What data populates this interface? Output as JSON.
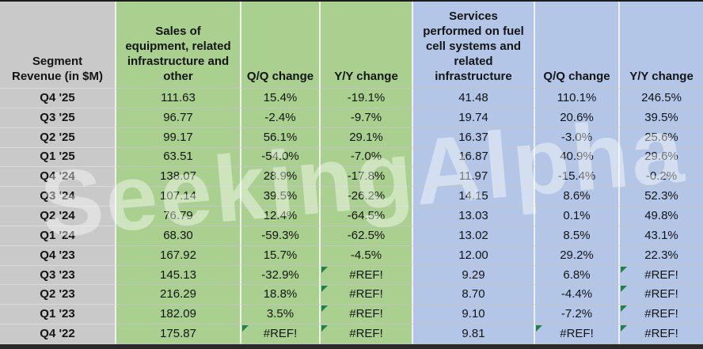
{
  "watermark": "SeekingAlpha",
  "colors": {
    "gray_fill": "#c9c9c9",
    "green_fill": "#a9d08e",
    "blue_fill": "#b4c6e7",
    "error_flag_green": "#1d8348",
    "top_bar": "#1c1c1c",
    "bottom_bar": "#2a2a2a"
  },
  "table": {
    "columns": [
      {
        "label": "Segment\nRevenue (in $M)",
        "group": "gray"
      },
      {
        "label": "Sales of\nequipment, related\ninfrastructure and\nother",
        "group": "green"
      },
      {
        "label": "Q/Q change",
        "group": "green"
      },
      {
        "label": "Y/Y change",
        "group": "green"
      },
      {
        "label": "Services\nperformed on fuel\ncell systems and\nrelated\ninfrastructure",
        "group": "blue"
      },
      {
        "label": "Q/Q change",
        "group": "blue"
      },
      {
        "label": "Y/Y change",
        "group": "blue"
      }
    ],
    "rows": [
      {
        "cells": [
          "Q4 '25",
          "111.63",
          "15.4%",
          "-19.1%",
          "41.48",
          "110.1%",
          "246.5%"
        ],
        "flags": []
      },
      {
        "cells": [
          "Q3 '25",
          "96.77",
          "-2.4%",
          "-9.7%",
          "19.74",
          "20.6%",
          "39.5%"
        ],
        "flags": []
      },
      {
        "cells": [
          "Q2 '25",
          "99.17",
          "56.1%",
          "29.1%",
          "16.37",
          "-3.0%",
          "25.6%"
        ],
        "flags": []
      },
      {
        "cells": [
          "Q1 '25",
          "63.51",
          "-54.0%",
          "-7.0%",
          "16.87",
          "40.9%",
          "29.6%"
        ],
        "flags": []
      },
      {
        "cells": [
          "Q4 '24",
          "138.07",
          "28.9%",
          "-17.8%",
          "11.97",
          "-15.4%",
          "-0.2%"
        ],
        "flags": []
      },
      {
        "cells": [
          "Q3 '24",
          "107.14",
          "39.5%",
          "-26.2%",
          "14.15",
          "8.6%",
          "52.3%"
        ],
        "flags": []
      },
      {
        "cells": [
          "Q2 '24",
          "76.79",
          "12.4%",
          "-64.5%",
          "13.03",
          "0.1%",
          "49.8%"
        ],
        "flags": []
      },
      {
        "cells": [
          "Q1 '24",
          "68.30",
          "-59.3%",
          "-62.5%",
          "13.02",
          "8.5%",
          "43.1%"
        ],
        "flags": []
      },
      {
        "cells": [
          "Q4 '23",
          "167.92",
          "15.7%",
          "-4.5%",
          "12.00",
          "29.2%",
          "22.3%"
        ],
        "flags": []
      },
      {
        "cells": [
          "Q3 '23",
          "145.13",
          "-32.9%",
          "#REF!",
          "9.29",
          "6.8%",
          "#REF!"
        ],
        "flags": [
          3,
          6
        ]
      },
      {
        "cells": [
          "Q2 '23",
          "216.29",
          "18.8%",
          "#REF!",
          "8.70",
          "-4.4%",
          "#REF!"
        ],
        "flags": [
          3,
          6
        ]
      },
      {
        "cells": [
          "Q1 '23",
          "182.09",
          "3.5%",
          "#REF!",
          "9.10",
          "-7.2%",
          "#REF!"
        ],
        "flags": [
          3,
          6
        ]
      },
      {
        "cells": [
          "Q4 '22",
          "175.87",
          "#REF!",
          "#REF!",
          "9.81",
          "#REF!",
          "#REF!"
        ],
        "flags": [
          2,
          3,
          5,
          6
        ]
      }
    ]
  }
}
